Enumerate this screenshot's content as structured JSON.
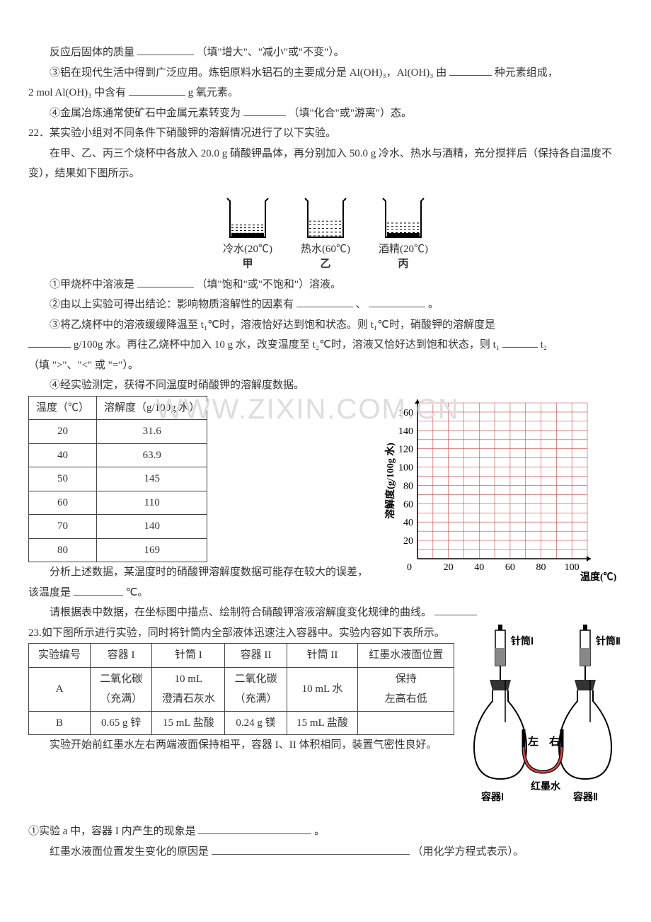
{
  "q21": {
    "line1a": "反应后固体的质量",
    "line1b": "（填\"增大\"、\"减小\"或\"不变\"）。",
    "line2a": "③铝在现代生活中得到广泛应用。炼铝原料水铝石的主要成分是 Al(OH)₃，Al(OH)₃ 由",
    "line2b": "种元素组成，",
    "line3a": "2 mol  Al(OH)₃ 中含有",
    "line3b": "g 氧元素。",
    "line4a": "④金属冶炼通常使矿石中金属元素转变为",
    "line4b": "（填\"化合\"或\"游离\"）态。"
  },
  "q22": {
    "title": "22．某实验小组对不同条件下硝酸钾的溶解情况进行了以下实验。",
    "intro": "在甲、乙、丙三个烧杯中各放入 20.0 g 硝酸钾晶体，再分别加入 50.0 g 冷水、热水与酒精，充分搅拌后（保持各自温度不变），结果如下图所示。",
    "beakers": [
      {
        "label1": "冷水(20℃)",
        "label2": "甲",
        "fill": 0.35,
        "sediment": true
      },
      {
        "label1": "热水(60℃)",
        "label2": "乙",
        "fill": 0.45,
        "sediment": false
      },
      {
        "label1": "酒精(20℃)",
        "label2": "丙",
        "fill": 0.4,
        "sediment": true
      }
    ],
    "p1a": "①甲烧杯中溶液是",
    "p1b": "（填\"饱和\"或\"不饱和\"）溶液。",
    "p2a": "②由以上实验可得出结论：影响物质溶解性的因素有",
    "p2b": "、",
    "p2c": "。",
    "p3a": "③将乙烧杯中的溶液缓缓降温至 t₁℃时，溶液恰好达到饱和状态。则 t₁℃时，硝酸钾的溶解度是",
    "p3b": "g/100g 水。再往乙烧杯中加入 10 g 水，改变温度至 t₂℃时，溶液又恰好达到饱和状态，则 t₁",
    "p3c": "t₂",
    "p3d": "（填 \">\"、\"<\" 或 \"=\"）。",
    "p4": "④经实验测定，获得不同温度时硝酸钾的溶解度数据。",
    "table": {
      "headers": [
        "温度（℃）",
        "溶解度（g/100g 水）"
      ],
      "rows": [
        [
          "20",
          "31.6"
        ],
        [
          "40",
          "63.9"
        ],
        [
          "50",
          "145"
        ],
        [
          "60",
          "110"
        ],
        [
          "70",
          "140"
        ],
        [
          "80",
          "169"
        ]
      ]
    },
    "chart": {
      "ylabel": "溶解度(g/100g 水)",
      "xlabel": "温度(℃)",
      "yticks": [
        20,
        40,
        60,
        80,
        100,
        120,
        140,
        160
      ],
      "xticks": [
        20,
        40,
        60,
        80,
        100
      ],
      "ylim": [
        0,
        170
      ],
      "xlim": [
        0,
        110
      ],
      "grid_color": "#cc4444",
      "axis_color": "#000000",
      "tick_fontsize": 14
    },
    "p5a": "分析上述数据，某温度时的硝酸钾溶解度数据可能存在较大的误差，该温度是",
    "p5b": "℃。",
    "p6": "请根据表中数据，在坐标图中描点、绘制符合硝酸钾溶液溶解度变化规律的曲线。"
  },
  "q23": {
    "title": "23.如下图所示进行实验，同时将针筒内全部液体迅速注入容器中。实验内容如下表所示。",
    "table": {
      "headers": [
        "实验编号",
        "容器 I",
        "针筒 I",
        "容器 II",
        "针筒 II",
        "红墨水液面位置"
      ],
      "rows": [
        {
          "id": "A",
          "c1a": "二氧化碳",
          "c1b": "（充满）",
          "s1a": "10 mL",
          "s1b": "澄清石灰水",
          "c2a": "二氧化碳",
          "c2b": "（充满）",
          "s2": "10 mL  水",
          "ink1": "保持",
          "ink2": "左高右低"
        },
        {
          "id": "B",
          "c1": "0.65 g  锌",
          "s1": "15 mL  盐酸",
          "c2": "0.24 g  镁",
          "s2": "15 mL  盐酸",
          "ink": ""
        }
      ]
    },
    "diagram": {
      "syringe1": "针筒Ⅰ",
      "syringe2": "针筒Ⅱ",
      "flask1": "容器Ⅰ",
      "flask2": "容器Ⅱ",
      "left": "左",
      "right": "右",
      "ink": "红墨水"
    },
    "footer1": "实验开始前红墨水左右两端液面保持相平，容器 I、II 体积相同，装置气密性良好。",
    "q1a": "①实验 a 中，容器 I 内产生的现象是",
    "q1b": "。",
    "q2a": "红墨水液面位置发生变化的原因是",
    "q2b": "（用化学方程式表示）。"
  },
  "watermark": "WWW.ZIXIN.COM.CN"
}
